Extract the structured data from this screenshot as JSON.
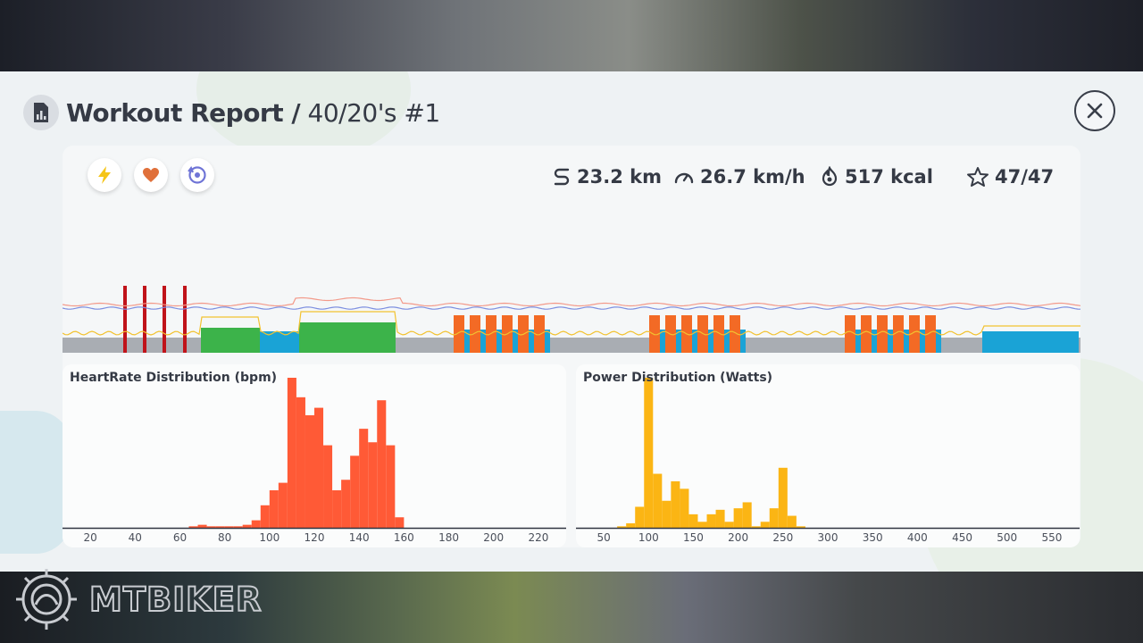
{
  "header": {
    "title_bold": "Workout Report /",
    "title_rest": " 40/20's #1",
    "icon": "report-chart-icon",
    "close_icon": "close-icon"
  },
  "toggles": [
    {
      "name": "power",
      "icon": "lightning-icon",
      "color": "#f5c518"
    },
    {
      "name": "heartrate",
      "icon": "heart-icon",
      "color": "#e0703a"
    },
    {
      "name": "cadence",
      "icon": "cadence-icon",
      "color": "#6f74d6"
    }
  ],
  "stats": {
    "distance": {
      "value": "23.2 km",
      "icon": "route-icon"
    },
    "speed": {
      "value": "26.7 km/h",
      "icon": "speedometer-icon"
    },
    "calories": {
      "value": "517 kcal",
      "icon": "flame-icon"
    },
    "score": {
      "value": "47/47",
      "icon": "star-icon"
    }
  },
  "colors": {
    "hr_bar": "#ff5a36",
    "power_bar": "#fbb514",
    "zone_gray": "#a9adb3",
    "zone_teal": "#1aa3d6",
    "zone_green": "#3cb34a",
    "zone_orange": "#f36a25",
    "zone_red": "#c0131a",
    "power_line": "#f2c230",
    "hr_line": "#f39a8a",
    "cadence_line": "#7d8fe0"
  },
  "chart_data": [
    {
      "type": "bar",
      "title": "HeartRate Distribution (bpm)",
      "x_ticks": [
        20,
        40,
        60,
        80,
        100,
        120,
        140,
        160,
        180,
        200,
        220
      ],
      "xlim": [
        10,
        230
      ],
      "bin_width": 4,
      "bins": [
        66,
        70,
        74,
        78,
        82,
        86,
        90,
        94,
        98,
        102,
        106,
        110,
        114,
        118,
        122,
        126,
        130,
        134,
        138,
        142,
        146,
        150,
        154,
        158
      ],
      "values": [
        1,
        2,
        1,
        1,
        1,
        1,
        2,
        5,
        15,
        25,
        30,
        100,
        87,
        75,
        80,
        55,
        25,
        32,
        48,
        66,
        57,
        85,
        55,
        7
      ],
      "color": "#ff5a36"
    },
    {
      "type": "bar",
      "title": "Power Distribution (Watts)",
      "x_ticks": [
        50,
        100,
        150,
        200,
        250,
        300,
        350,
        400,
        450,
        500,
        550
      ],
      "xlim": [
        25,
        575
      ],
      "bin_width": 10,
      "bins": [
        70,
        80,
        90,
        100,
        110,
        120,
        130,
        140,
        150,
        160,
        170,
        180,
        190,
        200,
        210,
        220,
        230,
        240,
        250,
        260,
        270
      ],
      "values": [
        1,
        3,
        14,
        100,
        36,
        18,
        31,
        26,
        9,
        4,
        9,
        12,
        4,
        13,
        17,
        1,
        4,
        13,
        40,
        8,
        1
      ],
      "color": "#fbb514"
    }
  ]
}
